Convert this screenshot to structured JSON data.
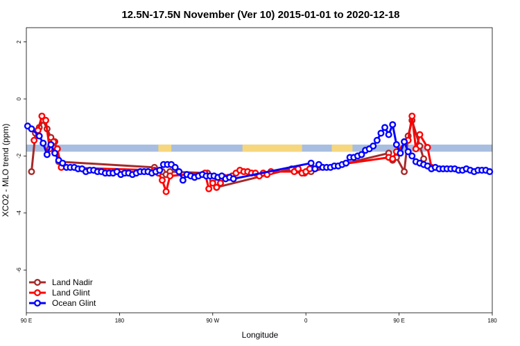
{
  "chart_data": {
    "type": "line",
    "title": "12.5N-17.5N November (Ver 10)   2015-01-01 to 2020-12-18",
    "xlabel": "Longitude",
    "ylabel": "XCO2 - MLO trend (ppm)",
    "xlim": [
      -180,
      180
    ],
    "ylim": [
      -7.5,
      2.5
    ],
    "x_ticks": [
      {
        "value": -180,
        "label": "90 E"
      },
      {
        "value": -108,
        "label": "180"
      },
      {
        "value": -36,
        "label": "90 W"
      },
      {
        "value": 36,
        "label": "0"
      },
      {
        "value": 108,
        "label": "90 E"
      },
      {
        "value": 180,
        "label": "180"
      }
    ],
    "y_ticks": [
      {
        "value": 2,
        "label": "2"
      },
      {
        "value": 0,
        "label": "0"
      },
      {
        "value": -2,
        "label": "-2"
      },
      {
        "value": -4,
        "label": "-4"
      },
      {
        "value": -6,
        "label": "-6"
      }
    ],
    "land_band": {
      "y_range": [
        -1.85,
        -1.6
      ],
      "ocean_color": "#a8bee0",
      "land_color": "#f6d77e",
      "land_segments": [
        [
          -78,
          -68
        ],
        [
          -13,
          33
        ],
        [
          56,
          72
        ]
      ]
    },
    "legend": [
      {
        "label": "Land Nadir",
        "color": "#a52a2a"
      },
      {
        "label": "Land Glint",
        "color": "#ff0000"
      },
      {
        "label": "Ocean Glint",
        "color": "#0000ff"
      }
    ],
    "series": [
      {
        "name": "Land Nadir",
        "color": "#a52a2a",
        "x": [
          -176,
          -173,
          -170,
          -167,
          -164,
          -161,
          -158,
          -155,
          -81,
          -75,
          -72,
          -69,
          -40,
          -36,
          -33,
          25,
          30,
          35,
          40,
          100,
          103,
          106,
          112,
          115,
          118,
          124,
          127
        ],
        "y": [
          -2.55,
          -1.2,
          -1.0,
          -0.75,
          -1.05,
          -1.35,
          -1.5,
          -2.2,
          -2.4,
          -2.55,
          -2.65,
          -2.55,
          -2.6,
          -2.85,
          -3.1,
          -2.45,
          -2.5,
          -2.6,
          -2.55,
          -1.9,
          -2.15,
          -2.05,
          -2.55,
          -1.3,
          -0.75,
          -1.65,
          -2.1
        ]
      },
      {
        "name": "Land Glint",
        "color": "#ff0000",
        "x": [
          -174,
          -171,
          -168,
          -165,
          -162,
          -159,
          -156,
          -153,
          -81,
          -78,
          -75,
          -72,
          -69,
          -42,
          -39,
          -36,
          -33,
          -30,
          -27,
          -24,
          -21,
          -18,
          -15,
          -12,
          -9,
          -6,
          -3,
          0,
          3,
          6,
          9,
          27,
          30,
          33,
          36,
          39,
          100,
          103,
          106,
          115,
          118,
          121,
          124,
          130,
          133
        ],
        "y": [
          -1.45,
          -1.1,
          -0.6,
          -0.75,
          -1.75,
          -1.5,
          -1.75,
          -2.4,
          -2.5,
          -2.6,
          -2.85,
          -3.25,
          -2.7,
          -2.6,
          -3.15,
          -2.95,
          -3.1,
          -2.95,
          -2.75,
          -2.75,
          -2.7,
          -2.6,
          -2.5,
          -2.55,
          -2.55,
          -2.6,
          -2.6,
          -2.7,
          -2.6,
          -2.65,
          -2.55,
          -2.55,
          -2.45,
          -2.6,
          -2.55,
          -2.45,
          -2.05,
          -2.1,
          -1.85,
          -1.45,
          -0.6,
          -1.75,
          -1.25,
          -1.7,
          -2.4
        ]
      },
      {
        "name": "Ocean Glint",
        "color": "#0000ff",
        "x": [
          -179,
          -176,
          -170,
          -167,
          -164,
          -161,
          -158,
          -155,
          -152,
          -149,
          -146,
          -143,
          -140,
          -137,
          -134,
          -131,
          -128,
          -125,
          -122,
          -119,
          -116,
          -113,
          -110,
          -107,
          -104,
          -101,
          -98,
          -95,
          -92,
          -89,
          -86,
          -83,
          -80,
          -77,
          -74,
          -71,
          -68,
          -65,
          -62,
          -59,
          -56,
          -53,
          -50,
          -47,
          -44,
          -41,
          -38,
          -35,
          -32,
          -29,
          -26,
          -23,
          -20,
          40,
          43,
          46,
          49,
          52,
          55,
          58,
          61,
          64,
          67,
          70,
          73,
          76,
          79,
          82,
          85,
          88,
          91,
          94,
          97,
          100,
          103,
          106,
          109,
          112,
          115,
          118,
          121,
          124,
          127,
          130,
          133,
          136,
          139,
          142,
          145,
          148,
          151,
          154,
          157,
          160,
          163,
          166,
          169,
          172,
          175,
          178
        ],
        "y": [
          -0.95,
          -1.05,
          -1.3,
          -1.55,
          -1.95,
          -1.6,
          -1.9,
          -2.15,
          -2.25,
          -2.4,
          -2.4,
          -2.4,
          -2.45,
          -2.45,
          -2.55,
          -2.5,
          -2.5,
          -2.55,
          -2.55,
          -2.6,
          -2.6,
          -2.6,
          -2.55,
          -2.65,
          -2.6,
          -2.6,
          -2.65,
          -2.6,
          -2.55,
          -2.55,
          -2.55,
          -2.6,
          -2.55,
          -2.5,
          -2.3,
          -2.3,
          -2.3,
          -2.4,
          -2.55,
          -2.85,
          -2.65,
          -2.7,
          -2.75,
          -2.7,
          -2.65,
          -2.7,
          -2.7,
          -2.7,
          -2.75,
          -2.7,
          -2.8,
          -2.75,
          -2.8,
          -2.25,
          -2.45,
          -2.3,
          -2.4,
          -2.4,
          -2.4,
          -2.35,
          -2.35,
          -2.3,
          -2.25,
          -2.05,
          -2.05,
          -2.0,
          -1.95,
          -1.8,
          -1.75,
          -1.65,
          -1.45,
          -1.2,
          -1.0,
          -1.25,
          -0.9,
          -1.6,
          -1.9,
          -1.5,
          -1.85,
          -2.0,
          -2.2,
          -2.25,
          -2.3,
          -2.35,
          -2.45,
          -2.4,
          -2.45,
          -2.45,
          -2.45,
          -2.45,
          -2.45,
          -2.5,
          -2.5,
          -2.45,
          -2.5,
          -2.55,
          -2.5,
          -2.5,
          -2.5,
          -2.55
        ]
      }
    ]
  }
}
